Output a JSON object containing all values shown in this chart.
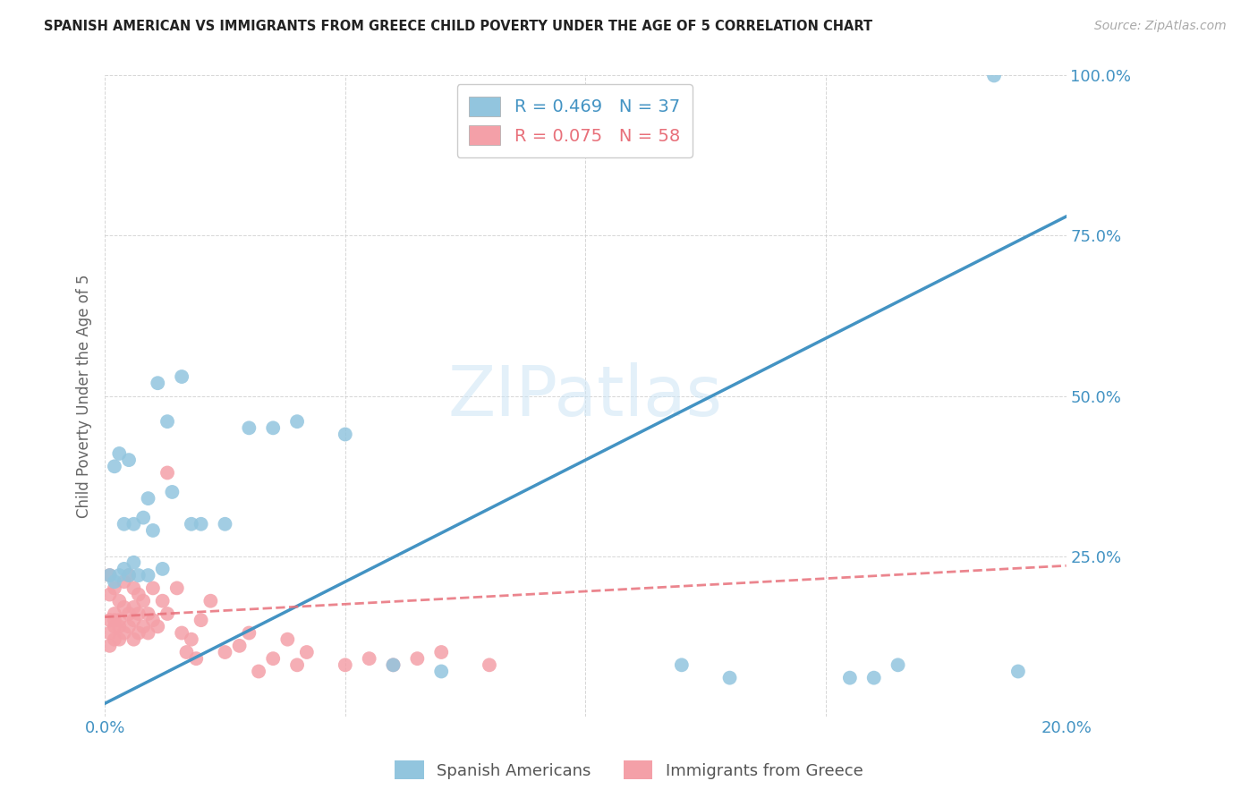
{
  "title": "SPANISH AMERICAN VS IMMIGRANTS FROM GREECE CHILD POVERTY UNDER THE AGE OF 5 CORRELATION CHART",
  "source": "Source: ZipAtlas.com",
  "ylabel": "Child Poverty Under the Age of 5",
  "blue_R": 0.469,
  "blue_N": 37,
  "pink_R": 0.075,
  "pink_N": 58,
  "blue_color": "#92c5de",
  "pink_color": "#f4a0a8",
  "trend_blue": "#4393c3",
  "trend_pink": "#e8707a",
  "watermark": "ZIPatlas",
  "xlim": [
    0.0,
    0.2
  ],
  "ylim": [
    0.0,
    1.0
  ],
  "blue_trend_x0": 0.0,
  "blue_trend_y0": 0.02,
  "blue_trend_x1": 0.2,
  "blue_trend_y1": 0.78,
  "pink_trend_x0": 0.0,
  "pink_trend_y0": 0.155,
  "pink_trend_x1": 0.2,
  "pink_trend_y1": 0.235,
  "blue_x": [
    0.001,
    0.002,
    0.002,
    0.003,
    0.003,
    0.004,
    0.004,
    0.005,
    0.005,
    0.006,
    0.006,
    0.007,
    0.008,
    0.009,
    0.009,
    0.01,
    0.011,
    0.012,
    0.013,
    0.014,
    0.016,
    0.018,
    0.02,
    0.025,
    0.03,
    0.035,
    0.04,
    0.05,
    0.06,
    0.07,
    0.12,
    0.13,
    0.155,
    0.16,
    0.165,
    0.185,
    0.19
  ],
  "blue_y": [
    0.22,
    0.21,
    0.39,
    0.41,
    0.22,
    0.23,
    0.3,
    0.4,
    0.22,
    0.24,
    0.3,
    0.22,
    0.31,
    0.34,
    0.22,
    0.29,
    0.52,
    0.23,
    0.46,
    0.35,
    0.53,
    0.3,
    0.3,
    0.3,
    0.45,
    0.45,
    0.46,
    0.44,
    0.08,
    0.07,
    0.08,
    0.06,
    0.06,
    0.06,
    0.08,
    1.0,
    0.07
  ],
  "pink_x": [
    0.001,
    0.001,
    0.001,
    0.001,
    0.001,
    0.002,
    0.002,
    0.002,
    0.002,
    0.002,
    0.003,
    0.003,
    0.003,
    0.003,
    0.004,
    0.004,
    0.004,
    0.005,
    0.005,
    0.005,
    0.006,
    0.006,
    0.006,
    0.006,
    0.007,
    0.007,
    0.007,
    0.008,
    0.008,
    0.009,
    0.009,
    0.01,
    0.01,
    0.011,
    0.012,
    0.013,
    0.013,
    0.015,
    0.016,
    0.017,
    0.018,
    0.019,
    0.02,
    0.022,
    0.025,
    0.028,
    0.03,
    0.032,
    0.035,
    0.038,
    0.04,
    0.042,
    0.05,
    0.055,
    0.06,
    0.065,
    0.07,
    0.08
  ],
  "pink_y": [
    0.15,
    0.13,
    0.11,
    0.19,
    0.22,
    0.14,
    0.16,
    0.12,
    0.15,
    0.2,
    0.14,
    0.12,
    0.15,
    0.18,
    0.13,
    0.17,
    0.21,
    0.14,
    0.16,
    0.22,
    0.12,
    0.15,
    0.17,
    0.2,
    0.13,
    0.16,
    0.19,
    0.14,
    0.18,
    0.13,
    0.16,
    0.15,
    0.2,
    0.14,
    0.18,
    0.38,
    0.16,
    0.2,
    0.13,
    0.1,
    0.12,
    0.09,
    0.15,
    0.18,
    0.1,
    0.11,
    0.13,
    0.07,
    0.09,
    0.12,
    0.08,
    0.1,
    0.08,
    0.09,
    0.08,
    0.09,
    0.1,
    0.08
  ]
}
